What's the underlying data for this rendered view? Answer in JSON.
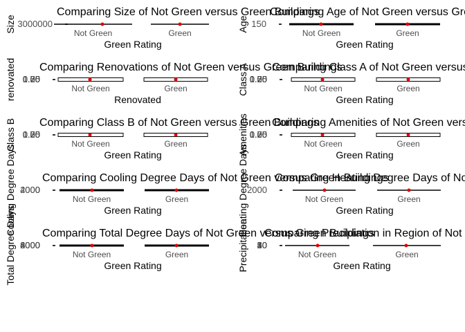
{
  "colors": {
    "median_point": "#e00000",
    "box": "#000000",
    "text": "#4d4d4d"
  },
  "chart_data": [
    {
      "type": "box",
      "title": "Comparing Size of Not Green versus Green Buildings",
      "xlabel": "Green Rating",
      "ylabel": "Size",
      "categories": [
        "Not Green",
        "Green"
      ],
      "yticks": [
        "3000000"
      ]
    },
    {
      "type": "box",
      "title": "Comparing Age of Not Green versus Green Buildings",
      "xlabel": "Green Rating",
      "ylabel": "Age",
      "categories": [
        "Not Green",
        "Green"
      ],
      "yticks": [
        "150"
      ]
    },
    {
      "type": "box",
      "title": "Comparing Renovations of Not Green versus Green Buildings",
      "xlabel": "Renovated",
      "ylabel": "renovated",
      "categories": [
        "Not Green",
        "Green"
      ],
      "yticks": [
        "0.00",
        "0.25",
        "0.50",
        "0.75",
        "1.00"
      ]
    },
    {
      "type": "box",
      "title": "Comparing Class A of Not Green versus Green Buildings",
      "xlabel": "Green Rating",
      "ylabel": "Class A",
      "categories": [
        "Not Green",
        "Green"
      ],
      "yticks": [
        "0.00",
        "0.25",
        "0.50",
        "0.75",
        "1.00"
      ]
    },
    {
      "type": "box",
      "title": "Comparing Class B of Not Green versus Green Buildings",
      "xlabel": "Green Rating",
      "ylabel": "Class B",
      "categories": [
        "Not Green",
        "Green"
      ],
      "yticks": [
        "0.00",
        "0.25",
        "0.50",
        "0.75",
        "1.00"
      ]
    },
    {
      "type": "box",
      "title": "Comparing Amenities of Not Green versus Green Buildings",
      "xlabel": "Green Rating",
      "ylabel": "Amenities",
      "categories": [
        "Not Green",
        "Green"
      ],
      "yticks": [
        "0.00",
        "0.25",
        "0.50",
        "0.75",
        "1.00"
      ]
    },
    {
      "type": "box",
      "title": "Comparing Cooling Degree Days of Not Green versus Green Buildings",
      "xlabel": "Green Rating",
      "ylabel": "Cooling Degree Days",
      "categories": [
        "Not Green",
        "Green"
      ],
      "yticks": [
        "0",
        "2000",
        "4000"
      ]
    },
    {
      "type": "box",
      "title": "Comparing Heating Degree Days of Not Green versus Green Buildings",
      "xlabel": "Green Rating",
      "ylabel": "Heating Degree Days",
      "categories": [
        "Not Green",
        "Green"
      ],
      "yticks": [
        "2000"
      ]
    },
    {
      "type": "box",
      "title": "Comparing Total Degree Days of Not Green versus Green Buildings",
      "xlabel": "Green Rating",
      "ylabel": "Total Degree Days",
      "categories": [
        "Not Green",
        "Green"
      ],
      "yticks": [
        "2000",
        "4000",
        "6000",
        "8000"
      ]
    },
    {
      "type": "box",
      "title": "Comparing Precipiation in Region of Not Green versus Green Buildings",
      "xlabel": "Green Rating",
      "ylabel": "Precipitation",
      "categories": [
        "Not Green",
        "Green"
      ],
      "yticks": [
        "10",
        "20",
        "30",
        "40",
        "50"
      ]
    }
  ]
}
